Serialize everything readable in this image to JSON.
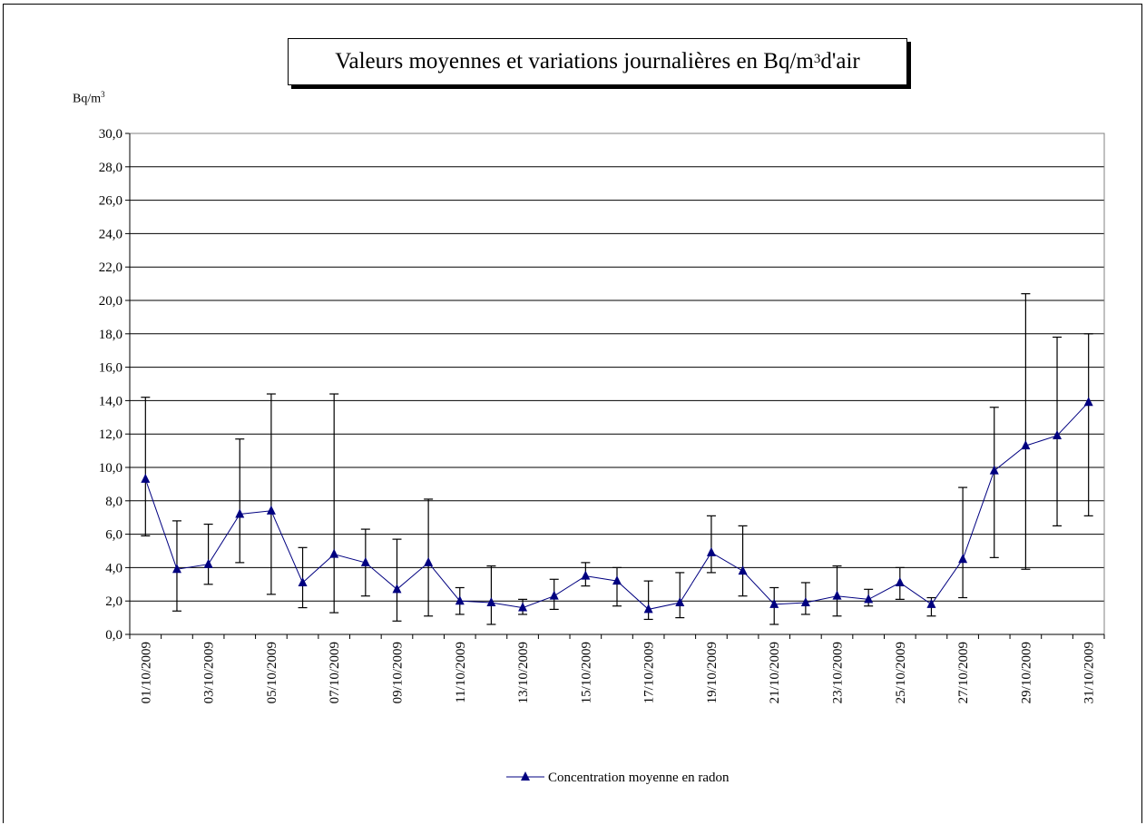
{
  "chart_data": {
    "type": "line",
    "title": {
      "prefix": "Valeurs moyennes et variations journalières en Bq/m",
      "sup": "3",
      "suffix": " d'air"
    },
    "ylabel": {
      "base": "Bq/m",
      "sup": "3"
    },
    "ylim": [
      0,
      30
    ],
    "yticks": [
      "0,0",
      "2,0",
      "4,0",
      "6,0",
      "8,0",
      "10,0",
      "12,0",
      "14,0",
      "16,0",
      "18,0",
      "20,0",
      "22,0",
      "24,0",
      "26,0",
      "28,0",
      "30,0"
    ],
    "x": [
      "01/10/2009",
      "02/10/2009",
      "03/10/2009",
      "04/10/2009",
      "05/10/2009",
      "06/10/2009",
      "07/10/2009",
      "08/10/2009",
      "09/10/2009",
      "10/10/2009",
      "11/10/2009",
      "12/10/2009",
      "13/10/2009",
      "14/10/2009",
      "15/10/2009",
      "16/10/2009",
      "17/10/2009",
      "18/10/2009",
      "19/10/2009",
      "20/10/2009",
      "21/10/2009",
      "22/10/2009",
      "23/10/2009",
      "24/10/2009",
      "25/10/2009",
      "26/10/2009",
      "27/10/2009",
      "28/10/2009",
      "29/10/2009",
      "30/10/2009",
      "31/10/2009"
    ],
    "xtick_labels": [
      "01/10/2009",
      "03/10/2009",
      "05/10/2009",
      "07/10/2009",
      "09/10/2009",
      "11/10/2009",
      "13/10/2009",
      "15/10/2009",
      "17/10/2009",
      "19/10/2009",
      "21/10/2009",
      "23/10/2009",
      "25/10/2009",
      "27/10/2009",
      "29/10/2009",
      "31/10/2009"
    ],
    "series": [
      {
        "name": "Concentration moyenne en radon",
        "color": "#000080",
        "values": [
          9.3,
          3.9,
          4.2,
          7.2,
          7.4,
          3.1,
          4.8,
          4.3,
          2.7,
          4.3,
          2.0,
          1.9,
          1.6,
          2.3,
          3.5,
          3.2,
          1.5,
          1.9,
          4.9,
          3.8,
          1.8,
          1.9,
          2.3,
          2.1,
          3.1,
          1.8,
          4.5,
          9.8,
          11.3,
          11.9,
          13.9
        ],
        "min": [
          5.9,
          1.4,
          3.0,
          4.3,
          2.4,
          1.6,
          1.3,
          2.3,
          0.8,
          1.1,
          1.2,
          0.6,
          1.2,
          1.5,
          2.9,
          1.7,
          0.9,
          1.0,
          3.7,
          2.3,
          0.6,
          1.2,
          1.1,
          1.7,
          2.1,
          1.1,
          2.2,
          4.6,
          3.9,
          6.5,
          7.1
        ],
        "max": [
          14.2,
          6.8,
          6.6,
          11.7,
          14.4,
          5.2,
          14.4,
          6.3,
          5.7,
          8.1,
          2.8,
          4.1,
          2.1,
          3.3,
          4.3,
          4.0,
          3.2,
          3.7,
          7.1,
          6.5,
          2.8,
          3.1,
          4.1,
          2.7,
          4.0,
          2.2,
          8.8,
          13.6,
          20.4,
          17.8,
          18.0
        ]
      }
    ],
    "grid": true,
    "legend_position": "bottom-center"
  }
}
